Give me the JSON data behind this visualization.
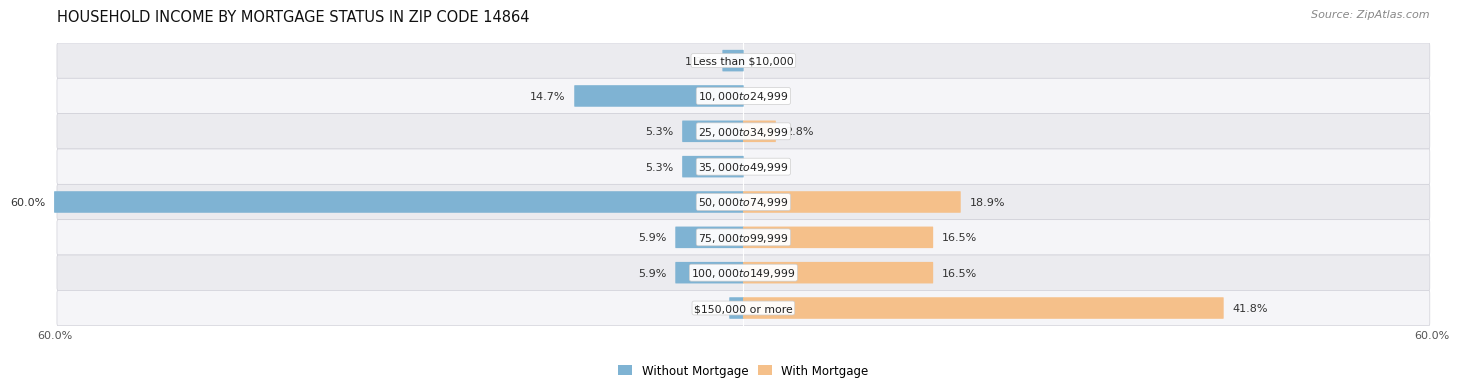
{
  "title": "HOUSEHOLD INCOME BY MORTGAGE STATUS IN ZIP CODE 14864",
  "source": "Source: ZipAtlas.com",
  "categories": [
    "Less than $10,000",
    "$10,000 to $24,999",
    "$25,000 to $34,999",
    "$35,000 to $49,999",
    "$50,000 to $74,999",
    "$75,000 to $99,999",
    "$100,000 to $149,999",
    "$150,000 or more"
  ],
  "without_mortgage": [
    1.8,
    14.7,
    5.3,
    5.3,
    60.0,
    5.9,
    5.9,
    1.2
  ],
  "with_mortgage": [
    0.0,
    0.0,
    2.8,
    0.0,
    18.9,
    16.5,
    16.5,
    41.8
  ],
  "color_without": "#7fb3d3",
  "color_with": "#f5c08a",
  "axis_limit": 60.0,
  "row_color_odd": "#ebebef",
  "row_color_even": "#f5f5f8",
  "title_fontsize": 10.5,
  "source_fontsize": 8,
  "label_fontsize": 8,
  "category_fontsize": 7.8,
  "axis_label_fontsize": 8,
  "legend_fontsize": 8.5
}
